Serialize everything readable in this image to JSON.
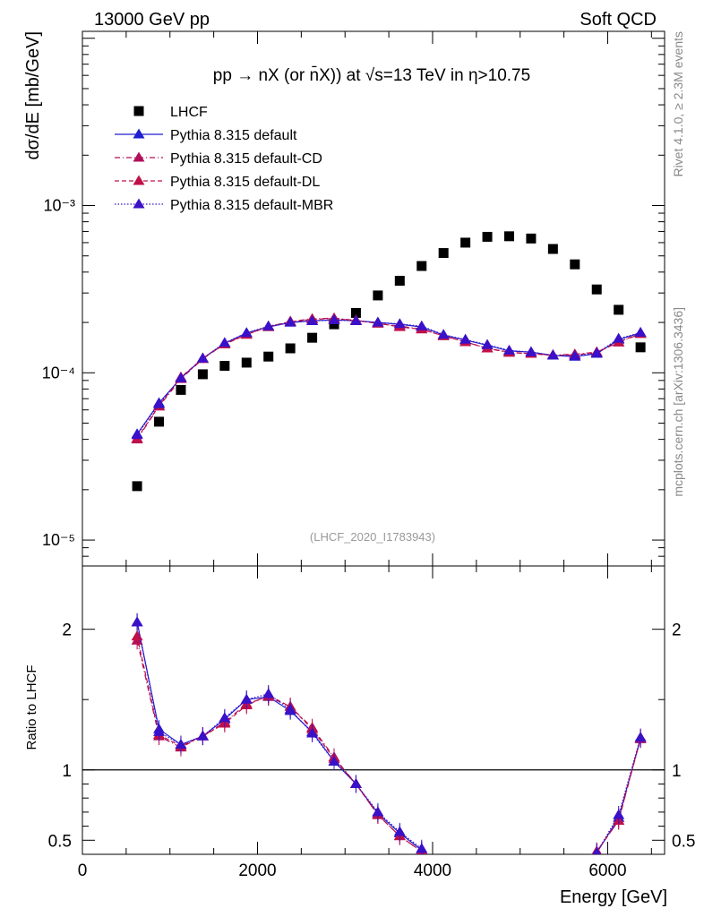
{
  "header": {
    "left": "13000 GeV pp",
    "right": "Soft QCD"
  },
  "side_labels": {
    "rivet": "Rivet 4.1.0, ≥ 2.3M events",
    "mcplots": "mcplots.cern.ch [arXiv:1306.3436]"
  },
  "watermark": "(LHCF_2020_I1783943)",
  "title_parts": {
    "main": "pp → nX (or n̄X)) at √s=13 TeV in η>10.75"
  },
  "colors": {
    "lhcf": "#000000",
    "default": "#1f1fd0",
    "cd": "#b0105a",
    "dl": "#c01048",
    "mbr": "#3a10c8"
  },
  "chart_data": [
    {
      "type": "scatter",
      "name": "main",
      "title": "pp → nX (or n̄X)) at √s=13 TeV in η>10.75",
      "xlabel": "Energy [GeV]",
      "ylabel": "dσ/dE [mb/GeV]",
      "yscale": "log",
      "xlim": [
        0,
        6650
      ],
      "ylim": [
        7e-06,
        0.011
      ],
      "ytick_labels": [
        "10⁻⁵",
        "10⁻⁴",
        "10⁻³"
      ],
      "x": [
        625,
        875,
        1125,
        1375,
        1625,
        1875,
        2125,
        2375,
        2625,
        2875,
        3125,
        3375,
        3625,
        3875,
        4125,
        4375,
        4625,
        4875,
        5125,
        5375,
        5625,
        5875,
        6125,
        6375
      ],
      "series": [
        {
          "name": "LHCF",
          "marker": "square",
          "values": [
            2.1e-05,
            5.1e-05,
            7.9e-05,
            9.8e-05,
            0.00011,
            0.000115,
            0.000125,
            0.00014,
            0.000162,
            0.000195,
            0.000228,
            0.00029,
            0.000355,
            0.000435,
            0.00052,
            0.0006,
            0.00065,
            0.000655,
            0.000635,
            0.00055,
            0.000445,
            0.000315,
            0.000238,
            0.000142
          ]
        },
        {
          "name": "Pythia 8.315 default",
          "marker": "triangle",
          "line": "solid",
          "values": [
            4.3e-05,
            6.6e-05,
            9.3e-05,
            0.000122,
            0.00015,
            0.000173,
            0.000188,
            0.0002,
            0.000205,
            0.000207,
            0.000205,
            0.0002,
            0.000195,
            0.000188,
            0.000168,
            0.000157,
            0.000146,
            0.000135,
            0.000133,
            0.000127,
            0.000125,
            0.00013,
            0.000158,
            0.000173
          ]
        },
        {
          "name": "Pythia 8.315 default-CD",
          "marker": "triangle",
          "line": "dashdot",
          "values": [
            4e-05,
            6.3e-05,
            9.2e-05,
            0.000121,
            0.000149,
            0.00017,
            0.000188,
            0.000203,
            0.00021,
            0.000212,
            0.000206,
            0.000197,
            0.00019,
            0.000183,
            0.000166,
            0.000153,
            0.00014,
            0.000132,
            0.00013,
            0.000128,
            0.000129,
            0.000133,
            0.000152,
            0.000171
          ]
        },
        {
          "name": "Pythia 8.315 default-DL",
          "marker": "triangle",
          "line": "dashed",
          "values": [
            4.05e-05,
            6.35e-05,
            9.4e-05,
            0.000122,
            0.000148,
            0.000169,
            0.000189,
            0.000202,
            0.000209,
            0.000211,
            0.000205,
            0.000198,
            0.000188,
            0.000182,
            0.000166,
            0.000153,
            0.00014,
            0.000133,
            0.00013,
            0.000127,
            0.000128,
            0.000132,
            0.000153,
            0.000172
          ]
        },
        {
          "name": "Pythia 8.315 default-MBR",
          "marker": "triangle",
          "line": "dotted",
          "values": [
            4.25e-05,
            6.5e-05,
            9.3e-05,
            0.000122,
            0.000151,
            0.000173,
            0.00019,
            0.0002,
            0.000204,
            0.000207,
            0.000204,
            0.0002,
            0.000196,
            0.00019,
            0.000169,
            0.000158,
            0.000147,
            0.000136,
            0.000133,
            0.000127,
            0.000126,
            0.000131,
            0.00016,
            0.000174
          ]
        }
      ]
    },
    {
      "type": "line",
      "name": "ratio",
      "ylabel": "Ratio to LHCF",
      "xlabel": "Energy [GeV]",
      "xlim": [
        0,
        6650
      ],
      "ylim": [
        0.4,
        2.45
      ],
      "xtick_labels": [
        "0",
        "2000",
        "4000",
        "6000"
      ],
      "ytick_labels": [
        "0.5",
        "1",
        "2"
      ],
      "x": [
        625,
        875,
        1125,
        1375,
        1625,
        1875,
        2125,
        2375,
        2625,
        2875,
        3125,
        3375,
        3625,
        3875,
        5875,
        6125,
        6375
      ],
      "series": [
        {
          "name": "Pythia 8.315 default",
          "values": [
            2.05,
            1.29,
            1.18,
            1.24,
            1.36,
            1.5,
            1.52,
            1.42,
            1.27,
            1.06,
            0.9,
            0.69,
            0.55,
            0.43,
            0.41,
            0.66,
            1.22
          ]
        },
        {
          "name": "Pythia 8.315 default-CD",
          "values": [
            1.92,
            1.24,
            1.16,
            1.24,
            1.34,
            1.47,
            1.52,
            1.45,
            1.3,
            1.09,
            0.9,
            0.68,
            0.53,
            0.42,
            0.42,
            0.64,
            1.22
          ]
        },
        {
          "name": "Pythia 8.315 default-DL",
          "values": [
            1.95,
            1.25,
            1.17,
            1.24,
            1.33,
            1.46,
            1.53,
            1.45,
            1.29,
            1.08,
            0.9,
            0.68,
            0.53,
            0.42,
            0.42,
            0.64,
            1.23
          ]
        },
        {
          "name": "Pythia 8.315 default-MBR",
          "values": [
            2.05,
            1.27,
            1.18,
            1.24,
            1.37,
            1.5,
            1.54,
            1.43,
            1.26,
            1.06,
            0.9,
            0.7,
            0.56,
            0.44,
            0.41,
            0.68,
            1.23
          ]
        }
      ]
    }
  ]
}
